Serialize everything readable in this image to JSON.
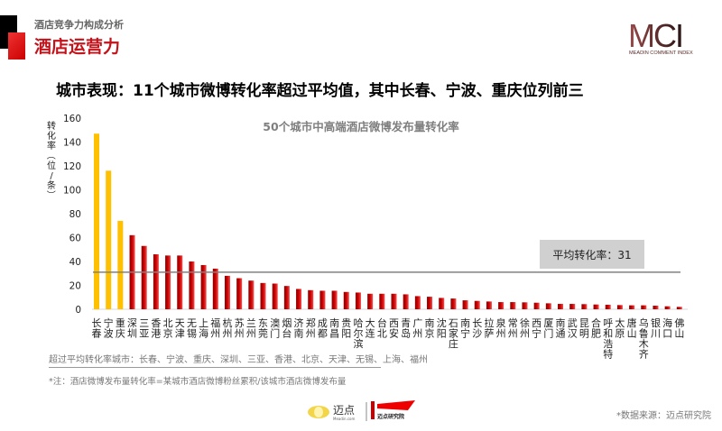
{
  "header": {
    "subtitle": "酒店竞争力构成分析",
    "section_title": "酒店运营力",
    "logo_text": "MCI",
    "logo_subtext": "MEADIN COMMENT INDEX"
  },
  "headline": "城市表现：11个城市微博转化率超过平均值，其中长春、宁波、重庆位列前三",
  "chart_data": {
    "type": "bar",
    "title": "50个城市中高端酒店微博发布量转化率",
    "ylabel": "转化率（位/条）",
    "xlabel": "",
    "ylim": [
      0,
      160
    ],
    "yticks": [
      0,
      20,
      40,
      60,
      80,
      100,
      120,
      140,
      160
    ],
    "categories": [
      "长春",
      "宁波",
      "重庆",
      "深圳",
      "三亚",
      "香港",
      "北京",
      "天津",
      "无锡",
      "上海",
      "福州",
      "杭州",
      "苏州",
      "兰州",
      "东莞",
      "澳门",
      "烟台",
      "济南",
      "郑州",
      "成都",
      "南昌",
      "贵阳",
      "哈尔滨",
      "大连",
      "台北",
      "西安",
      "青岛",
      "广州",
      "南京",
      "沈阳",
      "石家庄",
      "南宁",
      "长沙",
      "拉萨",
      "泉州",
      "常州",
      "徐州",
      "西宁",
      "厦门",
      "南通",
      "武汉",
      "昆明",
      "合肥",
      "呼和浩特",
      "太原",
      "唐山",
      "乌鲁木齐",
      "银川",
      "海口",
      "佛山"
    ],
    "values": [
      147,
      116,
      74,
      62,
      53,
      46,
      45,
      45,
      40,
      37,
      34,
      28,
      26,
      24,
      22,
      21.5,
      19.5,
      17,
      16,
      15.5,
      15.5,
      14.5,
      14,
      13,
      13,
      13,
      12.5,
      11,
      10.5,
      9.5,
      9,
      7.5,
      7,
      6.5,
      6,
      6,
      5.8,
      5.5,
      5,
      4.5,
      4.5,
      4.3,
      4,
      3.8,
      3.5,
      3.3,
      3.3,
      3,
      2.5,
      2
    ],
    "highlight_count": 3,
    "colors": {
      "top3": "#FFC000",
      "others": "#C00000",
      "average_line": "#808080"
    },
    "average": {
      "value": 31,
      "label": "平均转化率：31"
    },
    "grid": false,
    "legend": "none"
  },
  "exceed_text": "超过平均转化率城市：长春、宁波、重庆、深圳、三亚、香港、北京、天津、无锡、上海、福州",
  "note": "*注：酒店微博发布量转化率=某城市酒店微博粉丝累积/该城市酒店微博发布量",
  "source": "*数据来源：迈点研究院",
  "footer": {
    "logo1_text": "迈点",
    "logo1_sub": "Meadin.com",
    "logo2_text": "迈点研究院"
  }
}
